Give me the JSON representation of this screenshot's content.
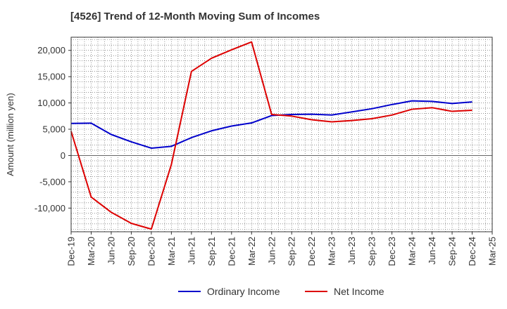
{
  "chart_data": {
    "type": "line",
    "title": "[4526]  Trend of 12-Month Moving Sum of Incomes",
    "xlabel": "",
    "ylabel": "Amount (million yen)",
    "ylim": [
      -14500,
      22500
    ],
    "yticks": [
      -10000,
      -5000,
      0,
      5000,
      10000,
      15000,
      20000
    ],
    "ytick_labels": [
      "-10,000",
      "-5,000",
      "0",
      "5,000",
      "10,000",
      "15,000",
      "20,000"
    ],
    "grid": true,
    "legend_position": "bottom",
    "categories": [
      "Dec-19",
      "Mar-20",
      "Jun-20",
      "Sep-20",
      "Dec-20",
      "Mar-21",
      "Jun-21",
      "Sep-21",
      "Dec-21",
      "Mar-22",
      "Jun-22",
      "Sep-22",
      "Dec-22",
      "Mar-23",
      "Jun-23",
      "Sep-23",
      "Dec-23",
      "Mar-24",
      "Jun-24",
      "Sep-24",
      "Dec-24",
      "Mar-25"
    ],
    "series": [
      {
        "name": "Ordinary Income",
        "color": "#0000cc",
        "values": [
          6100,
          6150,
          4000,
          2600,
          1400,
          1750,
          3400,
          4700,
          5600,
          6200,
          7600,
          7800,
          7850,
          7700,
          8300,
          8900,
          9700,
          10400,
          10300,
          9900,
          10200,
          null
        ]
      },
      {
        "name": "Net Income",
        "color": "#dd0000",
        "values": [
          4600,
          -7900,
          -10800,
          -12900,
          -14000,
          -1700,
          16000,
          18500,
          20100,
          21600,
          7800,
          7500,
          6800,
          6400,
          6650,
          7000,
          7700,
          8800,
          9100,
          8400,
          8600,
          null
        ]
      }
    ]
  }
}
